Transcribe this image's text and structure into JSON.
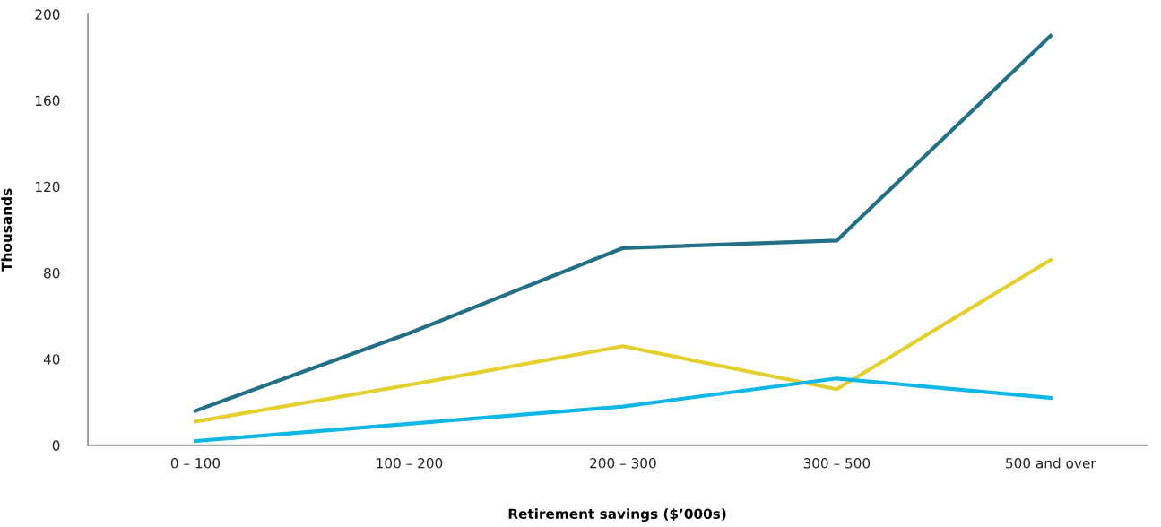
{
  "chart_data": {
    "type": "line",
    "xlabel": "Retirement savings ($’000s)",
    "ylabel": "Thousands",
    "categories": [
      "0 – 100",
      "100 – 200",
      "200 – 300",
      "300 – 500",
      "500 and over"
    ],
    "series": [
      {
        "color": "#236f86",
        "values": [
          16,
          52,
          91.5,
          95,
          190
        ]
      },
      {
        "color": "#e3cf2e",
        "values": [
          11,
          28,
          46,
          26,
          86
        ]
      },
      {
        "color": "#0fb7e6",
        "values": [
          2,
          10,
          18,
          31,
          22
        ]
      }
    ],
    "ylim": [
      0,
      200
    ],
    "yticks": [
      0,
      40,
      80,
      120,
      160,
      200
    ],
    "grid": false,
    "legend": false,
    "marker": "none",
    "line_style": "solid"
  }
}
